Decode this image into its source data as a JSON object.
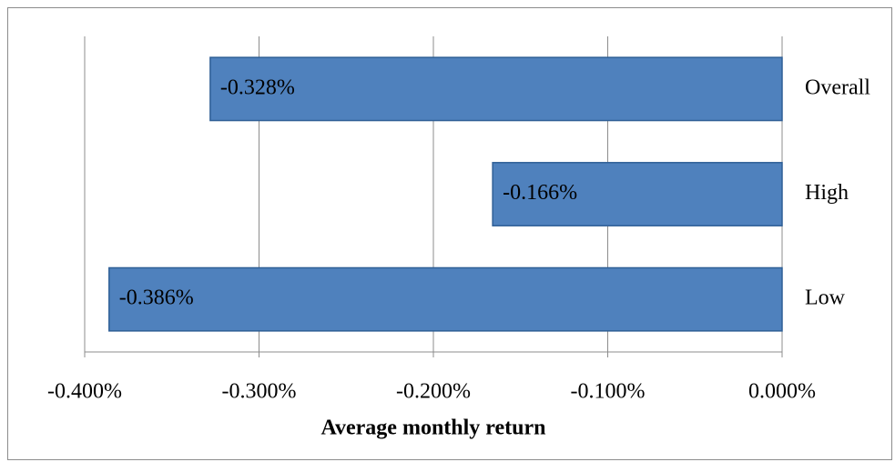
{
  "chart_data": {
    "type": "bar",
    "orientation": "horizontal",
    "x_label": "Average monthly return",
    "categories": [
      "Overall",
      "High",
      "Low"
    ],
    "values": [
      -0.328,
      -0.166,
      -0.386
    ],
    "value_labels": [
      "-0.328%",
      "-0.166%",
      "-0.386%"
    ],
    "color": "#4f81bd",
    "xlim": [
      -0.4,
      0
    ],
    "xticks": [
      {
        "value": -0.4,
        "label": "-0.400%"
      },
      {
        "value": -0.3,
        "label": "-0.300%"
      },
      {
        "value": -0.2,
        "label": "-0.200%"
      },
      {
        "value": -0.1,
        "label": "-0.100%"
      },
      {
        "value": 0,
        "label": "0.000%"
      }
    ],
    "grid": true
  }
}
